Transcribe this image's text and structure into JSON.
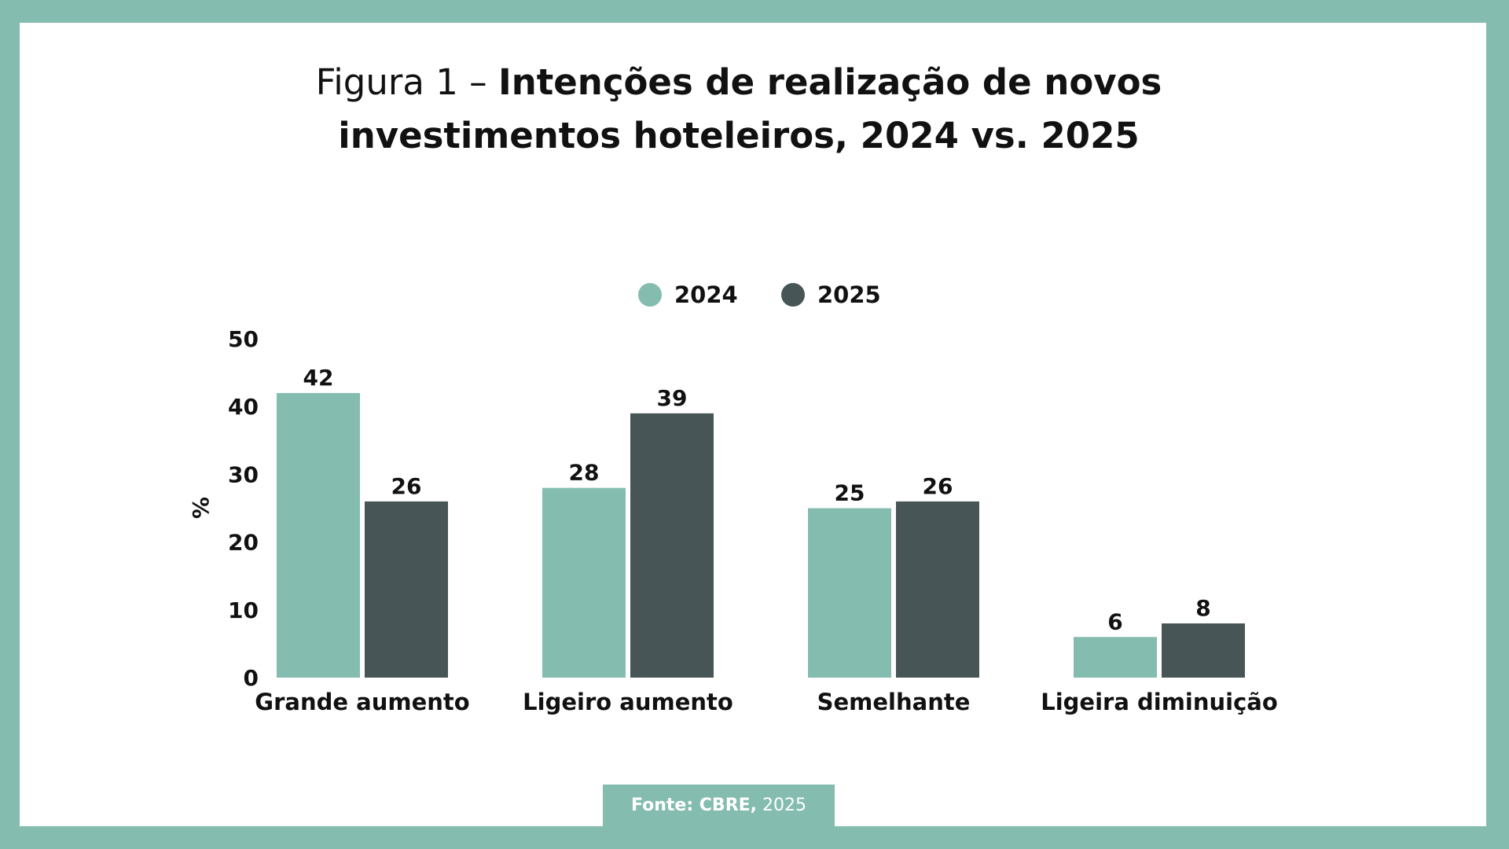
{
  "title": {
    "prefix": "Figura 1 –",
    "main_line1": "Intenções de realização de novos",
    "main_line2": "investimentos hoteleiros, 2024 vs. 2025"
  },
  "source": {
    "label": "Fonte: CBRE,",
    "year": "2025"
  },
  "colors": {
    "frame": "#84bcaf",
    "series_2024": "#84bcaf",
    "series_2025": "#475556"
  },
  "chart_data": {
    "type": "bar",
    "title": "Figura 1 – Intenções de realização de novos investimentos hoteleiros, 2024 vs. 2025",
    "xlabel": "",
    "ylabel": "%",
    "ylim": [
      0,
      50
    ],
    "yticks": [
      0,
      10,
      20,
      30,
      40,
      50
    ],
    "grid": false,
    "legend_position": "top-center",
    "categories": [
      "Grande aumento",
      "Ligeiro aumento",
      "Semelhante",
      "Ligeira diminuição"
    ],
    "series": [
      {
        "name": "2024",
        "color": "#84bcaf",
        "values": [
          42,
          28,
          25,
          6
        ]
      },
      {
        "name": "2025",
        "color": "#475556",
        "values": [
          26,
          39,
          26,
          8
        ]
      }
    ],
    "data_labels": true
  }
}
